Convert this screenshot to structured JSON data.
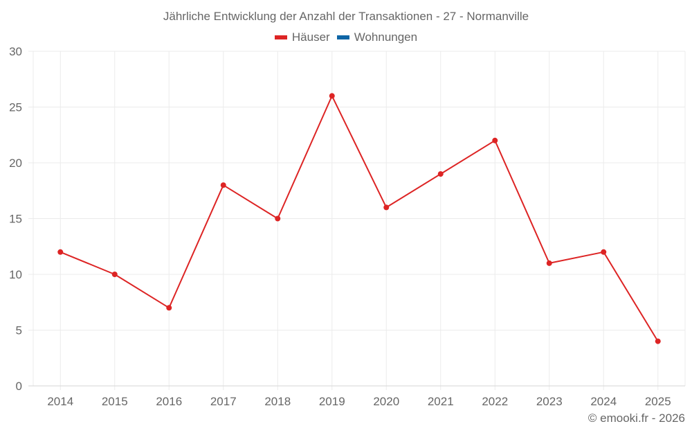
{
  "chart_data": {
    "type": "line",
    "title": "Jährliche Entwicklung der Anzahl der Transaktionen - 27 - Normanville",
    "categories": [
      "2014",
      "2015",
      "2016",
      "2017",
      "2018",
      "2019",
      "2020",
      "2021",
      "2022",
      "2023",
      "2024",
      "2025"
    ],
    "series": [
      {
        "name": "Häuser",
        "color": "#dd2424",
        "values": [
          12,
          10,
          7,
          18,
          15,
          26,
          16,
          19,
          22,
          11,
          12,
          4
        ]
      },
      {
        "name": "Wohnungen",
        "color": "#0e65a6",
        "values": []
      }
    ],
    "xlabel": "",
    "ylabel": "",
    "ylim": [
      0,
      30
    ],
    "yticks": [
      0,
      5,
      10,
      15,
      20,
      25,
      30
    ],
    "grid": true,
    "legend_position": "top"
  },
  "header": {
    "title": "Jährliche Entwicklung der Anzahl der Transaktionen - 27 - Normanville"
  },
  "legend": {
    "items": [
      {
        "label": "Häuser",
        "color": "#dd2424"
      },
      {
        "label": "Wohnungen",
        "color": "#0e65a6"
      }
    ]
  },
  "credit": "© emooki.fr - 2026"
}
